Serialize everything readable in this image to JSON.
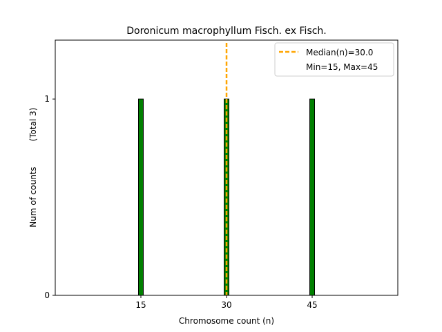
{
  "chart_data": {
    "type": "bar",
    "title": "Doronicum macrophyllum Fisch. ex Fisch.",
    "xlabel": "Chromosome count (n)",
    "ylabel": "Num of counts",
    "ylabel_note": "(Total 3)",
    "x": [
      15,
      30,
      45
    ],
    "values": [
      1,
      1,
      1
    ],
    "xlim": [
      0,
      60
    ],
    "ylim": [
      0,
      1.3
    ],
    "xticks": [
      15,
      30,
      45
    ],
    "yticks": [
      0,
      1
    ],
    "median": 30.0,
    "grid": false,
    "legend_position": "top-right",
    "legend": [
      {
        "label": "Median(n)=30.0",
        "style": "dashed-line"
      },
      {
        "label": "Min=15, Max=45",
        "style": "none"
      }
    ],
    "colors": {
      "bar": "#008000",
      "bar_edge": "#000000",
      "median_line": "#FFA500"
    }
  }
}
